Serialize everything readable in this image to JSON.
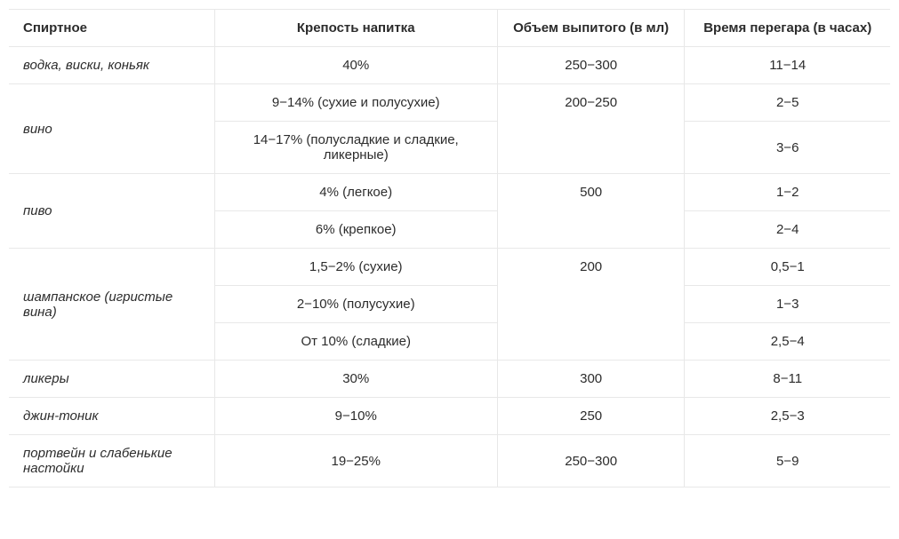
{
  "columns": {
    "drink": "Спиртное",
    "strength": "Крепость напитка",
    "volume": "Объем выпитого (в мл)",
    "time": "Время перегара (в часах)"
  },
  "rows": [
    {
      "drink": "водка, виски, коньяк",
      "strength": "40%",
      "volume": "250−300",
      "time": "11−14"
    },
    {
      "drink": "вино",
      "strength": "9−14% (сухие и полусухие)",
      "volume": "200−250",
      "time": "2−5"
    },
    {
      "strength": "14−17% (полусладкие и сладкие, ликерные)",
      "time": "3−6"
    },
    {
      "drink": "пиво",
      "strength": "4% (легкое)",
      "volume": "500",
      "time": "1−2"
    },
    {
      "strength": "6% (крепкое)",
      "time": "2−4"
    },
    {
      "drink": "шампанское (игристые вина)",
      "strength": "1,5−2% (сухие)",
      "volume": "200",
      "time": "0,5−1"
    },
    {
      "strength": "2−10% (полусухие)",
      "time": "1−3"
    },
    {
      "strength": "От 10% (сладкие)",
      "time": "2,5−4"
    },
    {
      "drink": "ликеры",
      "strength": "30%",
      "volume": "300",
      "time": "8−11"
    },
    {
      "drink": "джин-тоник",
      "strength": "9−10%",
      "volume": "250",
      "time": "2,5−3"
    },
    {
      "drink": "портвейн и слабенькие настойки",
      "strength": "19−25%",
      "volume": "250−300",
      "time": "5−9"
    }
  ]
}
